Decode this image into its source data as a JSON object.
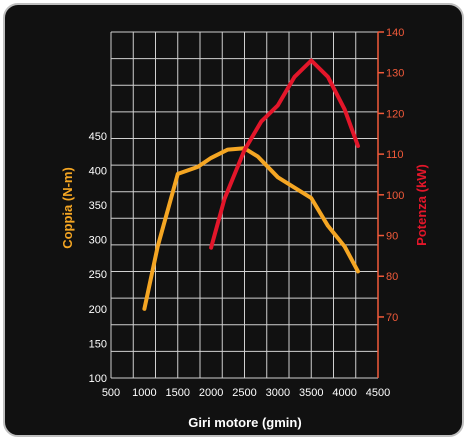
{
  "chart_data": {
    "type": "line",
    "xlabel": "Giri motore (gmin)",
    "ylabel_left": "Coppia (N-m)",
    "ylabel_right": "Potenza (kW)",
    "x_ticks": [
      500,
      1000,
      1500,
      2000,
      2500,
      3000,
      3500,
      4000,
      4500
    ],
    "xlim": [
      500,
      4500
    ],
    "y_left_ticks": [
      100,
      150,
      200,
      250,
      300,
      350,
      400,
      450
    ],
    "y_left_lim": [
      100,
      600
    ],
    "y_right_ticks": [
      70,
      80,
      90,
      100,
      110,
      120,
      130,
      140
    ],
    "y_right_lim": [
      55,
      140
    ],
    "grid": true,
    "colors": {
      "torque": "#f5a623",
      "power": "#e3162a",
      "background": "#111111",
      "right_axis": "#f25a3a"
    },
    "series": [
      {
        "axis": "left",
        "x": [
          1000,
          1200,
          1500,
          1800,
          2000,
          2250,
          2500,
          2700,
          3000,
          3250,
          3500,
          3750,
          4000,
          4200
        ],
        "values": [
          200,
          290,
          395,
          405,
          418,
          430,
          432,
          420,
          390,
          375,
          360,
          320,
          290,
          254
        ]
      },
      {
        "axis": "right",
        "x": [
          2000,
          2200,
          2500,
          2750,
          3000,
          3250,
          3500,
          3750,
          4000,
          4200
        ],
        "values": [
          87,
          99,
          111,
          118,
          122,
          129,
          133,
          129,
          121,
          112
        ]
      }
    ]
  }
}
